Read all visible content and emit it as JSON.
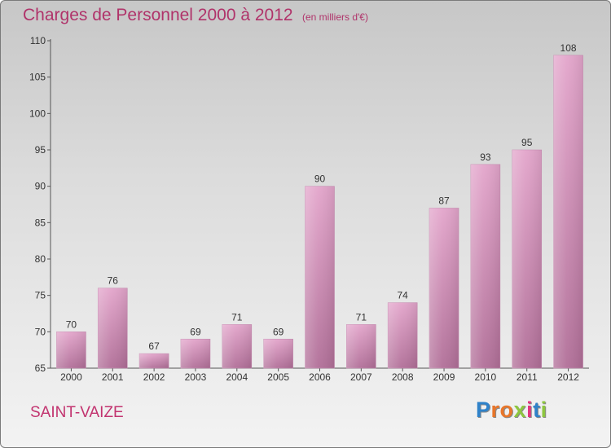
{
  "header": {
    "title": "Charges de Personnel 2000 à 2012",
    "unit_note": "(en milliers d'€)"
  },
  "footer": {
    "commune": "SAINT-VAIZE",
    "logo_letters": [
      "P",
      "r",
      "o",
      "x",
      "i",
      "t",
      "i"
    ]
  },
  "colors": {
    "bar_fill_top": "#e3a5cb",
    "bar_fill_bottom": "#b16f98",
    "title": "#b0336a"
  },
  "chart_data": {
    "type": "bar",
    "title": "Charges de Personnel 2000 à 2012",
    "subtitle": "(en milliers d'€)",
    "xlabel": "",
    "ylabel": "",
    "categories": [
      "2000",
      "2001",
      "2002",
      "2003",
      "2004",
      "2005",
      "2006",
      "2007",
      "2008",
      "2009",
      "2010",
      "2011",
      "2012"
    ],
    "values": [
      70,
      76,
      67,
      69,
      71,
      69,
      90,
      71,
      74,
      87,
      93,
      95,
      108
    ],
    "ylim": [
      65,
      110
    ],
    "yticks": [
      65,
      70,
      75,
      80,
      85,
      90,
      95,
      100,
      105,
      110
    ],
    "grid": false,
    "data_labels": true
  }
}
